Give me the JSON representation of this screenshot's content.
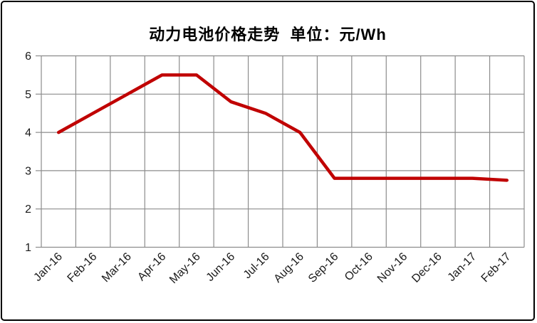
{
  "frame": {
    "background_color": "#FFFFFF",
    "border_color": "#000000"
  },
  "chart_data": {
    "type": "line",
    "title": "动力电池价格走势  单位：元/Wh",
    "title_main": "动力电池价格走势",
    "unit_label": "单位：元/Wh",
    "categories": [
      "Jan-16",
      "Feb-16",
      "Mar-16",
      "Apr-16",
      "May-16",
      "Jun-16",
      "Jul-16",
      "Aug-16",
      "Sep-16",
      "Oct-16",
      "Nov-16",
      "Dec-16",
      "Jan-17",
      "Feb-17"
    ],
    "values": [
      4.0,
      4.5,
      5.0,
      5.5,
      5.5,
      4.8,
      4.5,
      4.0,
      2.8,
      2.8,
      2.8,
      2.8,
      2.8,
      2.75
    ],
    "xlabel": "",
    "ylabel": "",
    "ylim": [
      1,
      6
    ],
    "y_ticks": [
      1,
      2,
      3,
      4,
      5,
      6
    ],
    "grid": true,
    "legend": "none",
    "x_label_rotation": -45,
    "line_color": "#C00000",
    "gridline_color": "#8C8C8C",
    "axis_text_color": "#1A1A1A"
  }
}
